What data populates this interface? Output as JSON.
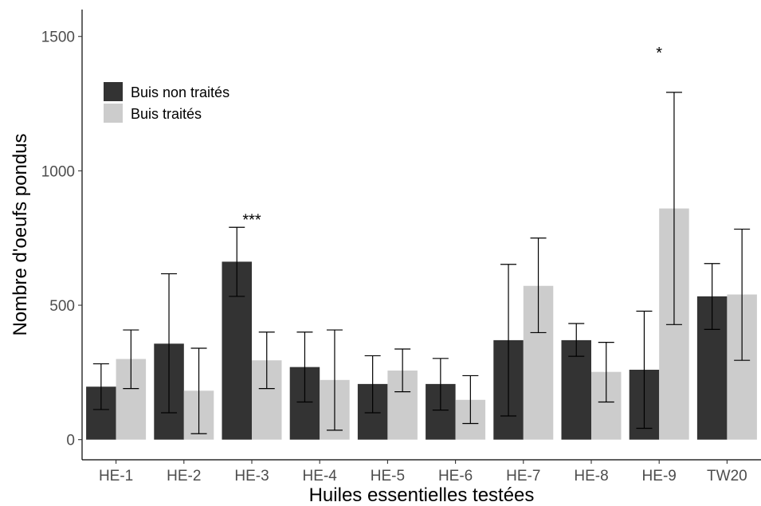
{
  "chart_data": {
    "type": "bar",
    "xlabel": "Huiles essentielles testées",
    "ylabel": "Nombre d'oeufs pondus",
    "ylim": [
      -75,
      1600
    ],
    "yticks": [
      0,
      500,
      1000,
      1500
    ],
    "categories": [
      "HE-1",
      "HE-2",
      "HE-3",
      "HE-4",
      "HE-5",
      "HE-6",
      "HE-7",
      "HE-8",
      "HE-9",
      "TW20"
    ],
    "legend_position": "top-left",
    "series": [
      {
        "name": "Buis non traités",
        "color": "#333333",
        "values": [
          197,
          357,
          662,
          270,
          207,
          207,
          370,
          370,
          260,
          533
        ],
        "error_low": [
          112,
          100,
          533,
          140,
          100,
          110,
          88,
          310,
          42,
          410
        ],
        "error_high": [
          282,
          617,
          790,
          400,
          312,
          302,
          652,
          432,
          478,
          655
        ]
      },
      {
        "name": "Buis traités",
        "color": "#cccccc",
        "values": [
          300,
          182,
          295,
          222,
          257,
          148,
          572,
          252,
          860,
          540
        ],
        "error_low": [
          190,
          22,
          190,
          35,
          178,
          60,
          398,
          140,
          428,
          295
        ],
        "error_high": [
          408,
          340,
          400,
          408,
          337,
          238,
          750,
          362,
          1292,
          783
        ]
      }
    ],
    "annotations": [
      {
        "category": "HE-3",
        "text": "***",
        "value": 840
      },
      {
        "category": "HE-9",
        "text": "*",
        "value": 1460
      }
    ]
  }
}
